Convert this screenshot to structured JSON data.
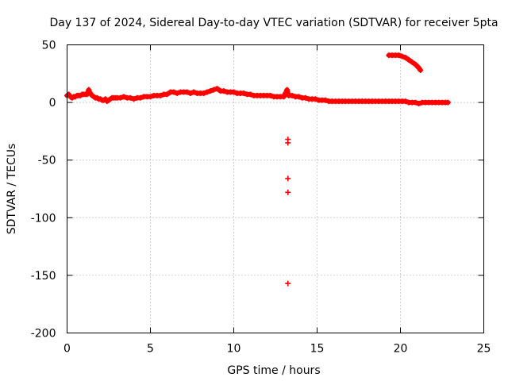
{
  "chart_data": {
    "type": "scatter",
    "title": "Day 137 of 2024, Sidereal Day-to-day VTEC variation (SDTVAR) for receiver 5pta",
    "xlabel": "GPS time / hours",
    "ylabel": "SDTVAR / TECUs",
    "xlim": [
      0,
      25
    ],
    "ylim": [
      -200,
      50
    ],
    "xticks": [
      0,
      5,
      10,
      15,
      20,
      25
    ],
    "yticks": [
      50,
      0,
      -50,
      -100,
      -150,
      -200
    ],
    "xtick_labels": [
      "0",
      "5",
      "10",
      "15",
      "20",
      "25"
    ],
    "ytick_labels": [
      "50",
      "0",
      "-50",
      "-100",
      "-150",
      "-200"
    ],
    "grid": true,
    "marker": "+",
    "color": "#ff0000",
    "series": [
      {
        "name": "main",
        "points": [
          [
            0.0,
            6
          ],
          [
            0.1,
            7
          ],
          [
            0.2,
            5
          ],
          [
            0.3,
            4
          ],
          [
            0.4,
            5
          ],
          [
            0.5,
            5
          ],
          [
            0.6,
            6
          ],
          [
            0.7,
            6
          ],
          [
            0.8,
            6
          ],
          [
            0.9,
            7
          ],
          [
            1.0,
            7
          ],
          [
            1.1,
            7
          ],
          [
            1.2,
            7
          ],
          [
            1.3,
            11
          ],
          [
            1.35,
            9
          ],
          [
            1.4,
            8
          ],
          [
            1.5,
            6
          ],
          [
            1.6,
            5
          ],
          [
            1.7,
            4
          ],
          [
            1.8,
            4
          ],
          [
            1.9,
            3
          ],
          [
            2.0,
            3
          ],
          [
            2.1,
            2
          ],
          [
            2.2,
            2
          ],
          [
            2.3,
            3
          ],
          [
            2.4,
            1
          ],
          [
            2.5,
            2
          ],
          [
            2.6,
            3
          ],
          [
            2.7,
            4
          ],
          [
            2.8,
            4
          ],
          [
            2.9,
            4
          ],
          [
            3.0,
            4
          ],
          [
            3.2,
            4
          ],
          [
            3.4,
            5
          ],
          [
            3.6,
            4
          ],
          [
            3.8,
            4
          ],
          [
            4.0,
            3
          ],
          [
            4.2,
            4
          ],
          [
            4.4,
            4
          ],
          [
            4.6,
            5
          ],
          [
            4.8,
            5
          ],
          [
            5.0,
            5
          ],
          [
            5.2,
            6
          ],
          [
            5.4,
            6
          ],
          [
            5.6,
            6
          ],
          [
            5.8,
            7
          ],
          [
            6.0,
            7
          ],
          [
            6.2,
            9
          ],
          [
            6.4,
            9
          ],
          [
            6.6,
            8
          ],
          [
            6.8,
            9
          ],
          [
            7.0,
            9
          ],
          [
            7.2,
            9
          ],
          [
            7.4,
            8
          ],
          [
            7.6,
            9
          ],
          [
            7.8,
            8
          ],
          [
            8.0,
            8
          ],
          [
            8.2,
            8
          ],
          [
            8.4,
            9
          ],
          [
            8.6,
            10
          ],
          [
            8.8,
            11
          ],
          [
            9.0,
            12
          ],
          [
            9.1,
            11
          ],
          [
            9.2,
            10
          ],
          [
            9.4,
            10
          ],
          [
            9.6,
            9
          ],
          [
            9.8,
            9
          ],
          [
            10.0,
            9
          ],
          [
            10.2,
            8
          ],
          [
            10.4,
            8
          ],
          [
            10.6,
            8
          ],
          [
            10.8,
            7
          ],
          [
            11.0,
            7
          ],
          [
            11.2,
            6
          ],
          [
            11.4,
            6
          ],
          [
            11.6,
            6
          ],
          [
            11.8,
            6
          ],
          [
            12.0,
            6
          ],
          [
            12.2,
            6
          ],
          [
            12.4,
            5
          ],
          [
            12.6,
            5
          ],
          [
            12.8,
            5
          ],
          [
            13.0,
            5
          ],
          [
            13.1,
            8
          ],
          [
            13.2,
            11
          ],
          [
            13.3,
            6
          ],
          [
            13.5,
            6
          ],
          [
            13.7,
            5
          ],
          [
            13.9,
            5
          ],
          [
            14.1,
            4
          ],
          [
            14.3,
            4
          ],
          [
            14.5,
            3
          ],
          [
            14.7,
            3
          ],
          [
            14.9,
            3
          ],
          [
            15.1,
            2
          ],
          [
            15.3,
            2
          ],
          [
            15.5,
            2
          ],
          [
            15.7,
            1
          ],
          [
            15.9,
            1
          ],
          [
            16.1,
            1
          ],
          [
            16.3,
            1
          ],
          [
            16.5,
            1
          ],
          [
            16.7,
            1
          ],
          [
            16.9,
            1
          ],
          [
            17.1,
            1
          ],
          [
            17.3,
            1
          ],
          [
            17.5,
            1
          ],
          [
            17.7,
            1
          ],
          [
            17.9,
            1
          ],
          [
            18.1,
            1
          ],
          [
            18.3,
            1
          ],
          [
            18.5,
            1
          ],
          [
            18.7,
            1
          ],
          [
            18.9,
            1
          ],
          [
            19.1,
            1
          ],
          [
            19.3,
            1
          ],
          [
            19.5,
            1
          ],
          [
            19.7,
            1
          ],
          [
            19.9,
            1
          ],
          [
            20.1,
            1
          ],
          [
            20.3,
            1
          ],
          [
            20.5,
            0
          ],
          [
            20.7,
            0
          ],
          [
            20.9,
            0
          ],
          [
            21.1,
            -1
          ],
          [
            21.3,
            0
          ],
          [
            21.5,
            0
          ],
          [
            21.7,
            0
          ],
          [
            21.9,
            0
          ],
          [
            22.1,
            0
          ],
          [
            22.3,
            0
          ],
          [
            22.5,
            0
          ],
          [
            22.7,
            0
          ],
          [
            22.85,
            0
          ]
        ]
      },
      {
        "name": "arc",
        "points": [
          [
            19.3,
            41
          ],
          [
            19.5,
            41
          ],
          [
            19.7,
            41
          ],
          [
            19.9,
            41
          ],
          [
            20.1,
            40
          ],
          [
            20.3,
            39
          ],
          [
            20.5,
            37
          ],
          [
            20.7,
            35
          ],
          [
            20.9,
            33
          ],
          [
            21.1,
            30
          ],
          [
            21.2,
            28
          ]
        ]
      },
      {
        "name": "outliers",
        "points": [
          [
            13.25,
            -32
          ],
          [
            13.25,
            -35
          ],
          [
            13.25,
            -66
          ],
          [
            13.25,
            -78
          ],
          [
            13.25,
            -157
          ]
        ]
      }
    ]
  }
}
